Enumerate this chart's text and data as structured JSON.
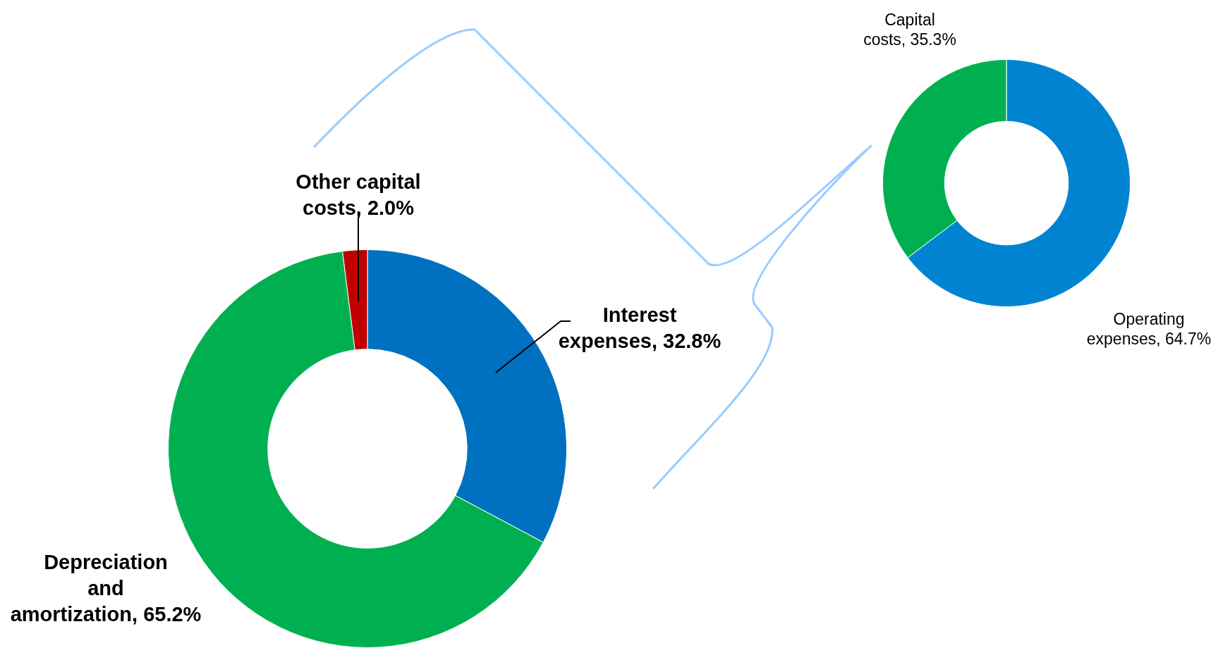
{
  "chart_data": [
    {
      "type": "donut",
      "categories": [
        "Interest expenses",
        "Depreciation and amortization",
        "Other capital costs"
      ],
      "values": [
        32.8,
        65.2,
        2.0
      ],
      "colors": [
        "#0070c0",
        "#00b050",
        "#c00000"
      ],
      "value_labels": [
        "32.8%",
        "65.2%",
        "2.0%"
      ]
    },
    {
      "type": "donut",
      "categories": [
        "Operating expenses",
        "Capital costs"
      ],
      "values": [
        64.7,
        35.3
      ],
      "colors": [
        "#0084d1",
        "#00b050"
      ],
      "value_labels": [
        "64.7%",
        "35.3%"
      ]
    }
  ]
}
